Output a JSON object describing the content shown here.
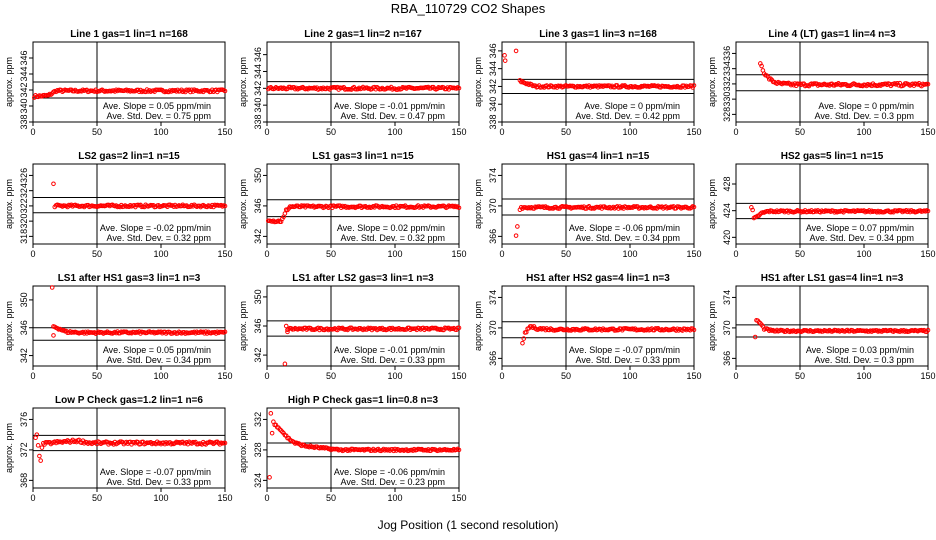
{
  "figure": {
    "title": "RBA_110729  CO2 Shapes",
    "xlabel": "Jog Position (1 second resolution)"
  },
  "chart_data": [
    {
      "type": "scatter",
      "title": "Line 1 gas=1 lin=1 n=168",
      "ylabel": "approx. ppm",
      "xlim": [
        0,
        150
      ],
      "ylim": [
        338,
        348
      ],
      "yticks": [
        338,
        340,
        342,
        344,
        346
      ],
      "xticks": [
        0,
        50,
        100,
        150
      ],
      "hlines": [
        343,
        341
      ],
      "vline": 50,
      "ave_slope": "Ave. Slope = 0.05 ppm/min",
      "ave_std": "Ave. Std. Dev. = 0.75 ppm",
      "profile": {
        "base": 341.9,
        "noise": 0.15,
        "start": 1,
        "pts": [
          [
            1,
            341.2
          ],
          [
            12,
            341.3
          ],
          [
            18,
            341.9
          ]
        ],
        "outliers": []
      },
      "color": "#ff0000"
    },
    {
      "type": "scatter",
      "title": "Line 2 gas=1 lin=2 n=167",
      "ylabel": "approx. ppm",
      "xlim": [
        0,
        150
      ],
      "ylim": [
        338,
        347.5
      ],
      "yticks": [
        338,
        340,
        342,
        344,
        346
      ],
      "xticks": [
        0,
        50,
        100,
        150
      ],
      "hlines": [
        342.8,
        341.3
      ],
      "vline": 50,
      "ave_slope": "Ave. Slope = -0.01 ppm/min",
      "ave_std": "Ave. Std. Dev. = 0.47 ppm",
      "profile": {
        "base": 342.0,
        "noise": 0.15,
        "start": 1,
        "pts": [],
        "outliers": []
      },
      "color": "#ff0000"
    },
    {
      "type": "scatter",
      "title": "Line 3 gas=1 lin=3 n=168",
      "ylabel": "approx. ppm",
      "xlim": [
        0,
        150
      ],
      "ylim": [
        338,
        347
      ],
      "yticks": [
        338,
        340,
        342,
        344,
        346
      ],
      "xticks": [
        0,
        50,
        100,
        150
      ],
      "hlines": [
        342.8,
        341.2
      ],
      "vline": 50,
      "ave_slope": "Ave. Slope = 0 ppm/min",
      "ave_std": "Ave. Std. Dev. = 0.42 ppm",
      "profile": {
        "base": 342.0,
        "noise": 0.12,
        "start": 14,
        "pts": [
          [
            1,
            346.9
          ],
          [
            4,
            346.8
          ],
          [
            8,
            346.8
          ],
          [
            10,
            346.2
          ],
          [
            12,
            345.6
          ],
          [
            13,
            344.6
          ],
          [
            14,
            342.6
          ]
        ],
        "outliers": [
          [
            2,
            345.5
          ],
          [
            2.5,
            344.9
          ],
          [
            11,
            346.0
          ]
        ]
      },
      "color": "#ff0000"
    },
    {
      "type": "scatter",
      "title": "Line 4 (LT) gas=1 lin=4 n=3",
      "ylabel": "approx. ppm",
      "xlim": [
        0,
        150
      ],
      "ylim": [
        327,
        337.5
      ],
      "yticks": [
        328,
        330,
        332,
        334,
        336
      ],
      "xticks": [
        0,
        50,
        100,
        150
      ],
      "hlines": [
        333.2,
        331.1
      ],
      "vline": 50,
      "ave_slope": "Ave. Slope = 0 ppm/min",
      "ave_std": "Ave. Std. Dev. = 0.3 ppm",
      "profile": {
        "base": 331.9,
        "noise": 0.2,
        "start": 19,
        "pts": [
          [
            19,
            334.8
          ],
          [
            21,
            333.8
          ],
          [
            24,
            333.0
          ],
          [
            28,
            332.4
          ],
          [
            34,
            332.0
          ]
        ],
        "outliers": []
      },
      "color": "#ff0000"
    },
    {
      "type": "scatter",
      "title": "LS2 gas=2 lin=1 n=15",
      "ylabel": "approx. ppm",
      "xlim": [
        0,
        150
      ],
      "ylim": [
        317,
        327.5
      ],
      "yticks": [
        318,
        320,
        322,
        324,
        326
      ],
      "xticks": [
        0,
        50,
        100,
        150
      ],
      "hlines": [
        323.1,
        321.1
      ],
      "vline": 50,
      "ave_slope": "Ave. Slope = -0.02 ppm/min",
      "ave_std": "Ave. Std. Dev. = 0.32 ppm",
      "profile": {
        "base": 322.0,
        "noise": 0.15,
        "start": 17,
        "pts": [],
        "outliers": [
          [
            16,
            324.9
          ]
        ]
      },
      "color": "#ff0000"
    },
    {
      "type": "scatter",
      "title": "LS1 gas=3 lin=1 n=15",
      "ylabel": "approx. ppm",
      "xlim": [
        0,
        150
      ],
      "ylim": [
        341,
        351.5
      ],
      "yticks": [
        342,
        346,
        350
      ],
      "xticks": [
        0,
        50,
        100,
        150
      ],
      "hlines": [
        346.8,
        344.6
      ],
      "vline": 50,
      "ave_slope": "Ave. Slope = 0.02 ppm/min",
      "ave_std": "Ave. Std. Dev. = 0.32 ppm",
      "profile": {
        "base": 345.9,
        "noise": 0.15,
        "start": 1,
        "pts": [
          [
            1,
            344.2
          ],
          [
            6,
            344.0
          ],
          [
            11,
            344.0
          ],
          [
            13,
            344.5
          ],
          [
            15,
            345.4
          ],
          [
            18,
            345.9
          ]
        ],
        "outliers": []
      },
      "color": "#ff0000"
    },
    {
      "type": "scatter",
      "title": "HS1 gas=4 lin=1 n=15",
      "ylabel": "approx. ppm",
      "xlim": [
        0,
        150
      ],
      "ylim": [
        365,
        375.5
      ],
      "yticks": [
        366,
        370,
        374
      ],
      "xticks": [
        0,
        50,
        100,
        150
      ],
      "hlines": [
        370.9,
        368.8
      ],
      "vline": 50,
      "ave_slope": "Ave. Slope = -0.06 ppm/min",
      "ave_std": "Ave. Std. Dev. = 0.34 ppm",
      "profile": {
        "base": 369.8,
        "noise": 0.15,
        "start": 15,
        "pts": [],
        "outliers": [
          [
            11,
            366.1
          ],
          [
            12,
            367.3
          ],
          [
            14,
            369.5
          ]
        ]
      },
      "color": "#ff0000"
    },
    {
      "type": "scatter",
      "title": "HS2 gas=5 lin=1 n=15",
      "ylabel": "approx. ppm",
      "xlim": [
        0,
        150
      ],
      "ylim": [
        419,
        431
      ],
      "yticks": [
        420,
        424,
        428
      ],
      "xticks": [
        0,
        50,
        100,
        150
      ],
      "hlines": [
        425.1,
        422.8
      ],
      "vline": 50,
      "ave_slope": "Ave. Slope = 0.07 ppm/min",
      "ave_std": "Ave. Std. Dev. = 0.34 ppm",
      "profile": {
        "base": 423.9,
        "noise": 0.15,
        "start": 14,
        "pts": [
          [
            14,
            422.8
          ],
          [
            16,
            423.0
          ],
          [
            20,
            423.6
          ],
          [
            25,
            423.9
          ]
        ],
        "outliers": [
          [
            12,
            424.5
          ],
          [
            13,
            424.1
          ]
        ]
      },
      "color": "#ff0000"
    },
    {
      "type": "scatter",
      "title": "LS1 after HS1 gas=3 lin=1 n=3",
      "ylabel": "approx. ppm",
      "xlim": [
        0,
        150
      ],
      "ylim": [
        340.5,
        352
      ],
      "yticks": [
        342,
        346,
        350
      ],
      "xticks": [
        0,
        50,
        100,
        150
      ],
      "hlines": [
        346.0,
        344.2
      ],
      "vline": 50,
      "ave_slope": "Ave. Slope = 0.05 ppm/min",
      "ave_std": "Ave. Std. Dev. = 0.34 ppm",
      "profile": {
        "base": 345.3,
        "noise": 0.15,
        "start": 16,
        "pts": [
          [
            16,
            346.2
          ],
          [
            20,
            345.9
          ],
          [
            26,
            345.4
          ]
        ],
        "outliers": [
          [
            15,
            351.8
          ],
          [
            16,
            344.9
          ]
        ]
      },
      "color": "#ff0000"
    },
    {
      "type": "scatter",
      "title": "LS1 after LS2 gas=3 lin=1 n=3",
      "ylabel": "approx. ppm",
      "xlim": [
        0,
        150
      ],
      "ylim": [
        340.5,
        351.5
      ],
      "yticks": [
        342,
        346,
        350
      ],
      "xticks": [
        0,
        50,
        100,
        150
      ],
      "hlines": [
        346.7,
        344.6
      ],
      "vline": 50,
      "ave_slope": "Ave. Slope = -0.01 ppm/min",
      "ave_std": "Ave. Std. Dev. = 0.33 ppm",
      "profile": {
        "base": 345.6,
        "noise": 0.15,
        "start": 16,
        "pts": [],
        "outliers": [
          [
            14,
            340.8
          ],
          [
            15,
            346.0
          ],
          [
            16,
            345.2
          ]
        ]
      },
      "color": "#ff0000"
    },
    {
      "type": "scatter",
      "title": "HS1 after HS2 gas=4 lin=1 n=3",
      "ylabel": "approx. ppm",
      "xlim": [
        0,
        150
      ],
      "ylim": [
        365,
        375.5
      ],
      "yticks": [
        366,
        370,
        374
      ],
      "xticks": [
        0,
        50,
        100,
        150
      ],
      "hlines": [
        370.8,
        368.7
      ],
      "vline": 50,
      "ave_slope": "Ave. Slope = -0.07 ppm/min",
      "ave_std": "Ave. Std. Dev. = 0.33 ppm",
      "profile": {
        "base": 369.8,
        "noise": 0.15,
        "start": 18,
        "pts": [
          [
            18,
            369.3
          ],
          [
            22,
            370.2
          ],
          [
            28,
            369.9
          ]
        ],
        "outliers": [
          [
            16,
            368.0
          ],
          [
            17,
            368.6
          ]
        ]
      },
      "color": "#ff0000"
    },
    {
      "type": "scatter",
      "title": "HS1 after LS1 gas=4 lin=1 n=3",
      "ylabel": "approx. ppm",
      "xlim": [
        0,
        150
      ],
      "ylim": [
        365,
        375.5
      ],
      "yticks": [
        366,
        370,
        374
      ],
      "xticks": [
        0,
        50,
        100,
        150
      ],
      "hlines": [
        370.4,
        368.8
      ],
      "vline": 50,
      "ave_slope": "Ave. Slope = 0.03 ppm/min",
      "ave_std": "Ave. Std. Dev. = 0.3 ppm",
      "profile": {
        "base": 369.6,
        "noise": 0.12,
        "start": 17,
        "pts": [
          [
            17,
            370.9
          ],
          [
            19,
            370.6
          ],
          [
            22,
            369.9
          ],
          [
            28,
            369.6
          ]
        ],
        "outliers": [
          [
            15,
            368.8
          ],
          [
            16,
            371.0
          ]
        ]
      },
      "color": "#ff0000"
    },
    {
      "type": "scatter",
      "title": "Low P Check gas=1.2 lin=1 n=6",
      "ylabel": "approx. ppm",
      "xlim": [
        0,
        150
      ],
      "ylim": [
        367,
        377.5
      ],
      "yticks": [
        368,
        372,
        376
      ],
      "xticks": [
        0,
        50,
        100,
        150
      ],
      "hlines": [
        373.9,
        371.9
      ],
      "vline": 50,
      "ave_slope": "Ave. Slope = -0.07 ppm/min",
      "ave_std": "Ave. Std. Dev. = 0.33 ppm",
      "profile": {
        "base": 372.9,
        "noise": 0.18,
        "start": 8,
        "pts": [
          [
            8,
            372.8
          ],
          [
            20,
            373.0
          ],
          [
            35,
            373.2
          ],
          [
            45,
            372.9
          ]
        ],
        "outliers": [
          [
            2,
            373.6
          ],
          [
            3,
            374.0
          ],
          [
            4,
            372.6
          ],
          [
            5,
            371.2
          ],
          [
            6,
            370.6
          ],
          [
            7,
            372.3
          ]
        ]
      },
      "color": "#ff0000"
    },
    {
      "type": "scatter",
      "title": "High P Check gas=1 lin=0.8 n=3",
      "ylabel": "approx. ppm",
      "xlim": [
        0,
        150
      ],
      "ylim": [
        323,
        333.5
      ],
      "yticks": [
        324,
        328,
        332
      ],
      "xticks": [
        0,
        50,
        100,
        150
      ],
      "hlines": [
        328.9,
        327.1
      ],
      "vline": 50,
      "ave_slope": "Ave. Slope = -0.06 ppm/min",
      "ave_std": "Ave. Std. Dev. = 0.23 ppm",
      "profile": {
        "base": 328.0,
        "noise": 0.13,
        "start": 6,
        "pts": [
          [
            6,
            331.3
          ],
          [
            9,
            331.0
          ],
          [
            12,
            330.4
          ],
          [
            16,
            329.6
          ],
          [
            22,
            328.9
          ],
          [
            30,
            328.5
          ],
          [
            45,
            328.2
          ]
        ],
        "outliers": [
          [
            2,
            324.4
          ],
          [
            3,
            332.8
          ],
          [
            4,
            330.2
          ],
          [
            5,
            331.7
          ]
        ]
      },
      "color": "#ff0000"
    }
  ]
}
